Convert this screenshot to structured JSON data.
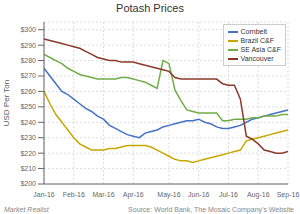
{
  "chart_data": {
    "type": "line",
    "title": "Potash Prices",
    "y_label": "USD Per Ton",
    "annotations": [
      "Market Realist",
      "Source: World Bank, The Mosaic Company's Website"
    ],
    "categories": [
      "Jan-16",
      null,
      null,
      null,
      null,
      "Feb-16",
      null,
      null,
      null,
      null,
      "Mar-16",
      null,
      null,
      null,
      null,
      "Apr-16",
      null,
      null,
      null,
      null,
      null,
      "May-16",
      null,
      null,
      null,
      null,
      "Jun-16",
      null,
      null,
      null,
      null,
      "Jul-16",
      null,
      null,
      null,
      null,
      "Aug-16",
      null,
      null,
      null,
      null,
      "Sep-16"
    ],
    "series": [
      {
        "name": "Cornbelt",
        "color": "#4472c4",
        "values": [
          275,
          270,
          265,
          260,
          258,
          255,
          252,
          249,
          247,
          244,
          242,
          238,
          236,
          234,
          232,
          231,
          230,
          233,
          234,
          235,
          237,
          238,
          239,
          240,
          241,
          241,
          242,
          240,
          239,
          237,
          236,
          236,
          237,
          238,
          240,
          242,
          243,
          244,
          245,
          246,
          247,
          248
        ]
      },
      {
        "name": "Brazil C&F",
        "color": "#c8a800",
        "values": [
          260,
          252,
          245,
          240,
          235,
          230,
          226,
          224,
          222,
          222,
          222,
          223,
          223,
          224,
          225,
          225,
          225,
          225,
          224,
          222,
          220,
          218,
          216,
          215,
          215,
          214,
          215,
          216,
          217,
          218,
          219,
          220,
          221,
          222,
          228,
          229,
          230,
          231,
          232,
          233,
          234,
          235
        ]
      },
      {
        "name": "SE Asia C&F",
        "color": "#70ad47",
        "values": [
          284,
          282,
          280,
          278,
          275,
          273,
          271,
          270,
          269,
          268,
          268,
          268,
          268,
          269,
          269,
          268,
          267,
          266,
          264,
          262,
          280,
          278,
          261,
          254,
          248,
          247,
          246,
          246,
          246,
          246,
          241,
          241,
          242,
          242,
          242,
          243,
          243,
          244,
          244,
          244,
          245,
          245
        ]
      },
      {
        "name": "Vancouver",
        "color": "#8b3a2a",
        "values": [
          294,
          293,
          292,
          291,
          290,
          289,
          288,
          286,
          284,
          282,
          281,
          280,
          280,
          279,
          279,
          279,
          278,
          277,
          276,
          275,
          274,
          273,
          269,
          268,
          268,
          268,
          268,
          268,
          268,
          268,
          265,
          264,
          264,
          255,
          231,
          229,
          226,
          222,
          221,
          220,
          220,
          221
        ]
      }
    ],
    "ylim": [
      200,
      305
    ],
    "yticks": [
      {
        "value": 200,
        "label": "$200"
      },
      {
        "value": 210,
        "label": "$210"
      },
      {
        "value": 220,
        "label": "$220"
      },
      {
        "value": 230,
        "label": "$230"
      },
      {
        "value": 240,
        "label": "$240"
      },
      {
        "value": 250,
        "label": "$250"
      },
      {
        "value": 260,
        "label": "$260"
      },
      {
        "value": 270,
        "label": "$270"
      },
      {
        "value": 280,
        "label": "$280"
      },
      {
        "value": 290,
        "label": "$290"
      },
      {
        "value": 300,
        "label": "$300"
      }
    ],
    "grid": true,
    "legend": "upper right"
  }
}
